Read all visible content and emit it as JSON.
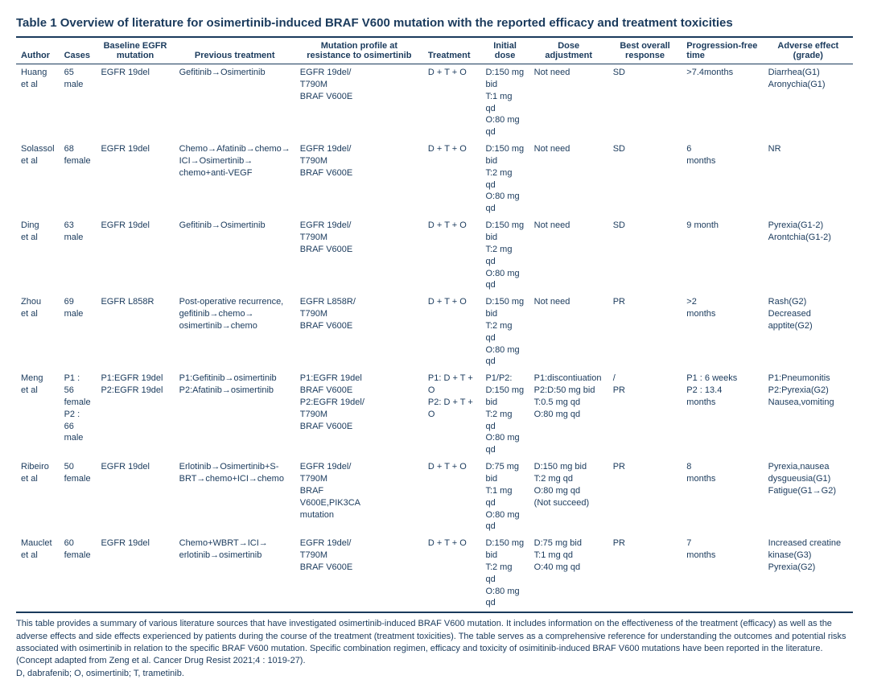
{
  "title": "Table 1   Overview of literature for osimertinib-induced BRAF V600 mutation with the reported efficacy and treatment toxicities",
  "headers": {
    "author": "Author",
    "cases": "Cases",
    "baseline": "Baseline EGFR mutation",
    "previous": "Previous treatment",
    "mutation": "Mutation profile at resistance to osimertinib",
    "treatment": "Treatment",
    "initial": "Initial dose",
    "adjustment": "Dose adjustment",
    "response": "Best overall response",
    "pft": "Progression-free time",
    "adverse": "Adverse effect (grade)"
  },
  "rows": [
    {
      "author": "Huang et al",
      "cases": "65 male",
      "baseline": "EGFR 19del",
      "previous": "Gefitinib→Osimertinib",
      "mutation": "EGFR 19del/ T790M BRAF V600E",
      "treatment": "D + T + O",
      "initial": "D:150 mg bid T:1 mg qd O:80 mg qd",
      "adjustment": "Not need",
      "response": "SD",
      "pft": ">7.4months",
      "adverse": "Diarrhea(G1) Aronychia(G1)"
    },
    {
      "author": "Solassol et al",
      "cases": "68 female",
      "baseline": "EGFR 19del",
      "previous": "Chemo→Afatinib→chemo→ ICI→Osimertinib→ chemo+anti-VEGF",
      "mutation": "EGFR 19del/ T790M BRAF V600E",
      "treatment": "D + T + O",
      "initial": "D:150 mg bid T:2 mg qd O:80 mg qd",
      "adjustment": "Not need",
      "response": "SD",
      "pft": "6 months",
      "adverse": "NR"
    },
    {
      "author": "Ding et al",
      "cases": "63 male",
      "baseline": "EGFR 19del",
      "previous": "Gefitinib→Osimertinib",
      "mutation": "EGFR 19del/ T790M BRAF V600E",
      "treatment": "D + T + O",
      "initial": "D:150 mg bid T:2 mg qd O:80 mg qd",
      "adjustment": "Not need",
      "response": "SD",
      "pft": "9 month",
      "adverse": "Pyrexia(G1-2) Arontchia(G1-2)"
    },
    {
      "author": "Zhou et al",
      "cases": "69 male",
      "baseline": "EGFR L858R",
      "previous": "Post-operative recurrence, gefitinib→chemo→ osimertinib→chemo",
      "mutation": "EGFR L858R/ T790M BRAF V600E",
      "treatment": "D + T + O",
      "initial": "D:150 mg bid T:2 mg qd O:80 mg qd",
      "adjustment": "Not need",
      "response": "PR",
      "pft": ">2 months",
      "adverse": "Rash(G2) Decreased apptite(G2)"
    },
    {
      "author": "Meng et al",
      "cases": "P1 : 56 female P2 : 66 male",
      "baseline": "P1:EGFR 19del P2:EGFR 19del",
      "previous": "P1:Gefitinib→osimertinib P2:Afatinib→osimertinib",
      "mutation": "P1:EGFR 19del BRAF V600E P2:EGFR 19del/ T790M BRAF V600E",
      "treatment": "P1: D + T + O P2: D + T + O",
      "initial": "P1/P2: D:150 mg bid T:2 mg qd O:80 mg qd",
      "adjustment": "P1:discontiuation P2:D:50 mg bid T:0.5 mg qd O:80 mg qd",
      "response": "/ PR",
      "pft": "P1 : 6 weeks P2 : 13.4 months",
      "adverse": "P1:Pneumonitis P2:Pyrexia(G2) Nausea,vomiting"
    },
    {
      "author": "Ribeiro et al",
      "cases": "50 female",
      "baseline": "EGFR 19del",
      "previous": "Erlotinib→Osimertinib+S-BRT→chemo+ICI→chemo",
      "mutation": "EGFR 19del/ T790M BRAF V600E,PIK3CA mutation",
      "treatment": "D + T + O",
      "initial": "D:75 mg bid T:1 mg qd O:80 mg qd",
      "adjustment": "D:150 mg bid T:2 mg qd O:80 mg qd (Not succeed)",
      "response": "PR",
      "pft": "8 months",
      "adverse": "Pyrexia,nausea dysgueusia(G1) Fatigue(G1→G2)"
    },
    {
      "author": "Mauclet et al",
      "cases": "60 female",
      "baseline": "EGFR 19del",
      "previous": "Chemo+WBRT→ICI→ erlotinib→osimertinib",
      "mutation": "EGFR 19del/ T790M BRAF V600E",
      "treatment": "D + T + O",
      "initial": "D:150 mg bid T:2 mg qd O:80 mg qd",
      "adjustment": "D:75 mg bid T:1 mg qd O:40 mg qd",
      "response": "PR",
      "pft": "7 months",
      "adverse": "Increased creatine kinase(G3) Pyrexia(G2)"
    }
  ],
  "footnote": "This table provides a summary of various literature sources that have investigated osimertinib-induced BRAF V600 mutation. It includes information on the effectiveness of the treatment (efficacy) as well as the adverse effects and side effects experienced by patients during the course of the treatment (treatment toxicities). The table serves as a comprehensive reference for understanding the outcomes and potential risks associated with osimertinib in relation to the specific BRAF V600 mutation. Specific combination regimen, efficacy and toxicity of osimitinib-induced BRAF V600 mutations have been reported in the literature. (Concept adapted from Zeng et al. Cancer Drug Resist 2021;4 : 1019-27).",
  "abbrev": "D, dabrafenib; O, osimertinib; T, trametinib."
}
